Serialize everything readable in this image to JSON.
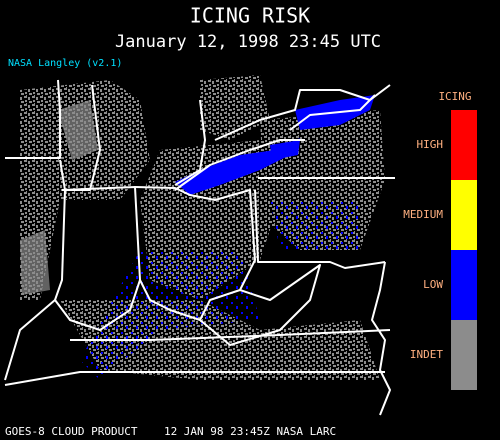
{
  "header": {
    "title": "ICING RISK",
    "subtitle": "January 12, 1998 23:45 UTC",
    "credit": "NASA Langley (v2.1)"
  },
  "legend": {
    "title": "ICING",
    "items": [
      {
        "label": "HIGH",
        "color": "#ff0000"
      },
      {
        "label": "MEDIUM",
        "color": "#ffff00"
      },
      {
        "label": "LOW",
        "color": "#0000ff"
      },
      {
        "label": "INDET",
        "color": "#8c8c8c"
      }
    ]
  },
  "footer": "GOES-8 CLOUD PRODUCT    12 JAN 98 23:45Z NASA LARC"
}
